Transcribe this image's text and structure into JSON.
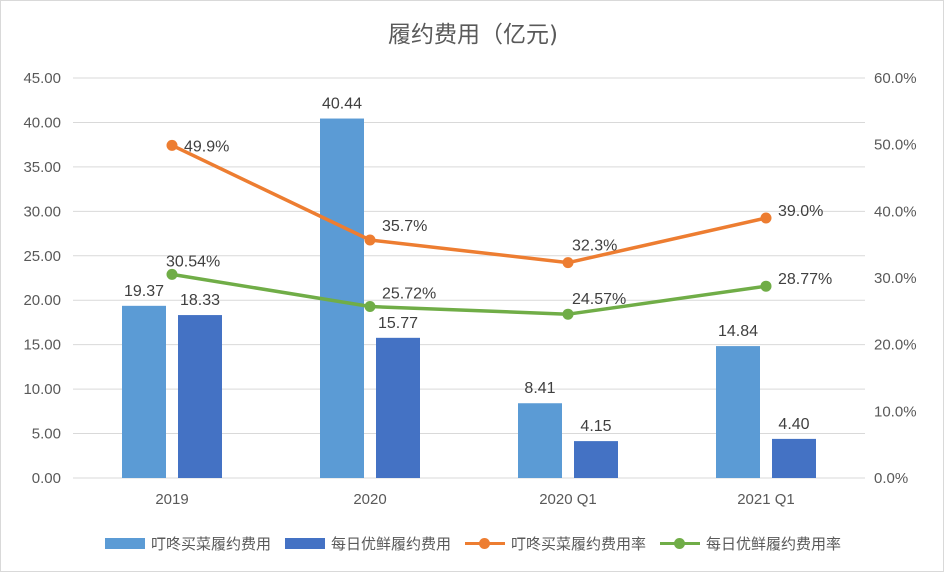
{
  "chart_data": {
    "type": "bar",
    "title": "履约费用（亿元)",
    "categories": [
      "2019",
      "2020",
      "2020 Q1",
      "2021 Q1"
    ],
    "y_left": {
      "ylim": [
        0,
        45
      ],
      "ticks": [
        "0.00",
        "5.00",
        "10.00",
        "15.00",
        "20.00",
        "25.00",
        "30.00",
        "35.00",
        "40.00",
        "45.00"
      ]
    },
    "y_right": {
      "ylim": [
        0,
        60
      ],
      "ticks": [
        "0.0%",
        "10.0%",
        "20.0%",
        "30.0%",
        "40.0%",
        "50.0%",
        "60.0%"
      ]
    },
    "grid": true,
    "legend_position": "bottom",
    "bar_series": [
      {
        "name": "叮咚买菜履约费用",
        "color": "#5B9BD5",
        "values": [
          19.37,
          40.44,
          8.41,
          14.84
        ],
        "labels": [
          "19.37",
          "40.44",
          "8.41",
          "14.84"
        ]
      },
      {
        "name": "每日优鲜履约费用",
        "color": "#4472C4",
        "values": [
          18.33,
          15.77,
          4.15,
          4.4
        ],
        "labels": [
          "18.33",
          "15.77",
          "4.15",
          "4.40"
        ]
      }
    ],
    "line_series": [
      {
        "name": "叮咚买菜履约费用率",
        "color": "#ED7D31",
        "axis": "right",
        "values": [
          49.9,
          35.7,
          32.3,
          39.0
        ],
        "labels": [
          "49.9%",
          "35.7%",
          "32.3%",
          "39.0%"
        ]
      },
      {
        "name": "每日优鲜履约费用率",
        "color": "#70AD47",
        "axis": "right",
        "values": [
          30.54,
          25.72,
          24.57,
          28.77
        ],
        "labels": [
          "30.54%",
          "25.72%",
          "24.57%",
          "28.77%"
        ]
      }
    ]
  }
}
